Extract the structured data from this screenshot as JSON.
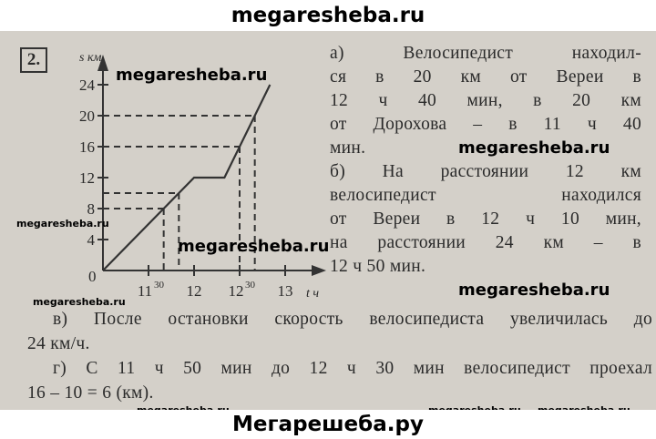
{
  "watermarks": {
    "top": "megaresheba.ru",
    "bottom": "Мегарешеба.ру",
    "repeat": "megaresheba.ru"
  },
  "task_number": "2.",
  "right_lines": [
    "а) Велосипедист находил-",
    "ся в 20 км от Вереи в",
    "12 ч 40 мин, в 20 км",
    "от Дорохова – в 11 ч 40",
    "мин.",
    "б) На расстоянии 12 км",
    "велосипедист находился",
    "от Вереи в 12 ч 10 мин,",
    "на расстоянии 24 км – в",
    "12 ч 50 мин."
  ],
  "bottom_lines": [
    "в) После остановки скорость велосипедиста увеличилась до",
    "24 км/ч.",
    "г) С 11 ч 50 мин до 12 ч 30 мин велосипедист проехал",
    "16 – 10 = 6 (км)."
  ],
  "chart_data": {
    "type": "line",
    "xlabel": "t ч",
    "ylabel": "s км",
    "x_ticks": [
      {
        "h": "11",
        "sup": "30",
        "min": 30
      },
      {
        "h": "12",
        "sup": "",
        "min": 60
      },
      {
        "h": "12",
        "sup": "30",
        "min": 90
      },
      {
        "h": "13",
        "sup": "",
        "min": 120
      }
    ],
    "y_ticks": [
      0,
      4,
      8,
      12,
      16,
      20,
      24
    ],
    "x_domain": [
      "11:00",
      "13:10"
    ],
    "y_domain": [
      0,
      26
    ],
    "points": [
      [
        "11:00",
        0
      ],
      [
        "12:00",
        12
      ],
      [
        "12:20",
        12
      ],
      [
        "12:50",
        24
      ]
    ],
    "dashed_guides": [
      [
        "11:40",
        8
      ],
      [
        "11:50",
        10
      ],
      [
        "12:30",
        16
      ],
      [
        "12:40",
        20
      ]
    ],
    "origin_label": "0"
  }
}
